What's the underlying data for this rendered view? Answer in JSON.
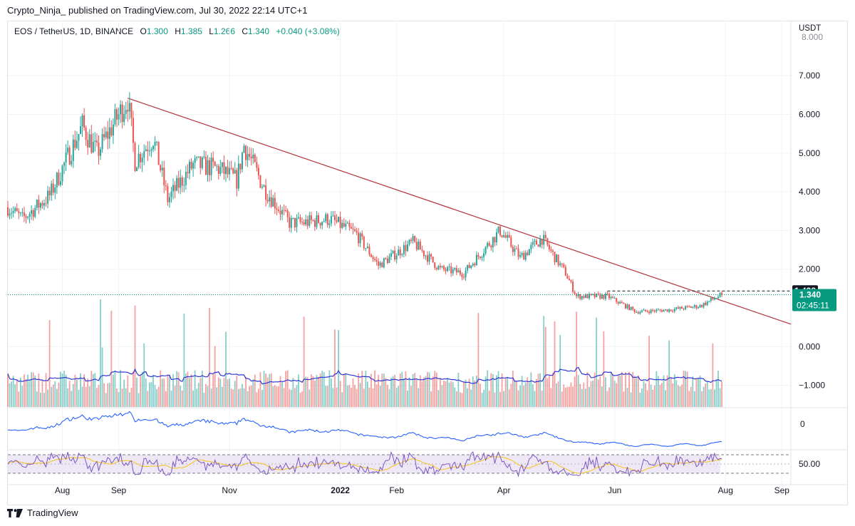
{
  "header": {
    "publisher_line": "Crypto_Ninja_ published on TradingView.com, Jul 30, 2022 22:14 UTC+1"
  },
  "legend": {
    "symbol": "EOS / TetherUS, 1D, BINANCE",
    "open_label": "O",
    "open": "1.300",
    "high_label": "H",
    "high": "1.385",
    "low_label": "L",
    "low": "1.266",
    "close_label": "C",
    "close": "1.340",
    "change": "+0.040 (+3.08%)"
  },
  "footer": {
    "brand": "TradingView"
  },
  "colors": {
    "up": "#26a69a",
    "down": "#ef5350",
    "trendline": "#b2323a",
    "ma_line": "#2f37d6",
    "osc_line": "#2962ff",
    "rsi_line": "#7e57c2",
    "rsi_ma": "#f5c518",
    "rsi_band": "#ede7f6",
    "price_line": "#089981"
  },
  "chart_data": [
    {
      "type": "candlestick",
      "currency": "USDT",
      "y_ticks": [
        "7.000",
        "6.000",
        "5.000",
        "4.000",
        "3.000",
        "2.000",
        "0.000",
        "−1.000"
      ],
      "y_partial_top": "8.000",
      "x_ticks": [
        "Aug",
        "Sep",
        "Nov",
        "2022",
        "Feb",
        "Apr",
        "Jun",
        "Aug",
        "Sep"
      ],
      "x_dates": [
        "2021-08-01",
        "2021-09-01",
        "2021-11-01",
        "2022-01-01",
        "2022-02-01",
        "2022-04-01",
        "2022-06-01",
        "2022-08-01",
        "2022-09-01"
      ],
      "x_range": [
        "2021-07-02",
        "2022-09-06"
      ],
      "price_anchors": [
        [
          "2021-07-02",
          3.6
        ],
        [
          "2021-07-10",
          3.3
        ],
        [
          "2021-07-25",
          3.9
        ],
        [
          "2021-08-12",
          5.7
        ],
        [
          "2021-08-20",
          5.0
        ],
        [
          "2021-09-06",
          6.4
        ],
        [
          "2021-09-10",
          4.8
        ],
        [
          "2021-09-20",
          5.4
        ],
        [
          "2021-09-28",
          3.8
        ],
        [
          "2021-10-12",
          4.7
        ],
        [
          "2021-10-26",
          4.6
        ],
        [
          "2021-11-05",
          4.3
        ],
        [
          "2021-11-09",
          5.2
        ],
        [
          "2021-11-20",
          4.1
        ],
        [
          "2021-12-04",
          3.2
        ],
        [
          "2021-12-12",
          3.2
        ],
        [
          "2021-12-26",
          3.3
        ],
        [
          "2022-01-10",
          2.9
        ],
        [
          "2022-01-22",
          2.1
        ],
        [
          "2022-02-10",
          2.7
        ],
        [
          "2022-02-25",
          2.0
        ],
        [
          "2022-03-10",
          1.9
        ],
        [
          "2022-03-30",
          3.0
        ],
        [
          "2022-04-10",
          2.3
        ],
        [
          "2022-04-22",
          2.8
        ],
        [
          "2022-05-05",
          1.9
        ],
        [
          "2022-05-11",
          1.3
        ],
        [
          "2022-05-28",
          1.3
        ],
        [
          "2022-06-13",
          0.9
        ],
        [
          "2022-07-01",
          0.95
        ],
        [
          "2022-07-18",
          1.05
        ],
        [
          "2022-07-30",
          1.34
        ]
      ],
      "last_price": "1.340",
      "countdown": "02:45:11",
      "dashed_level": "1.438",
      "trendline": {
        "start": [
          "2021-09-06",
          6.42
        ],
        "end": [
          "2022-09-06",
          0.58
        ]
      }
    },
    {
      "type": "volume_with_ma",
      "note_levels": "plotted in price pane below 0.000"
    },
    {
      "type": "oscillator",
      "y_tick": "0"
    },
    {
      "type": "rsi",
      "y_tick": "50.00",
      "bands": [
        30,
        70
      ]
    }
  ]
}
